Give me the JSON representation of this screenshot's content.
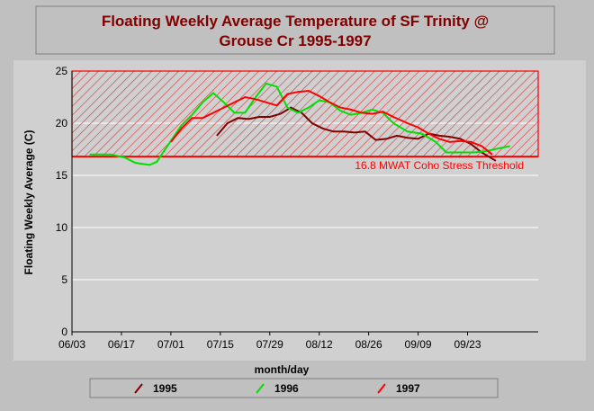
{
  "chart_data": {
    "type": "line",
    "title": "Floating Weekly Average Temperature of SF Trinity @",
    "subtitle": "Grouse Cr 1995-1997",
    "ylabel": "Floating Weekly Average (C)",
    "xlabel": "month/day",
    "xlim": [
      "06/03",
      "10/13"
    ],
    "xticks": [
      "06/03",
      "06/17",
      "07/01",
      "07/15",
      "07/29",
      "08/12",
      "08/26",
      "09/09",
      "09/23"
    ],
    "ylim": [
      0,
      25
    ],
    "yticks": [
      0,
      5,
      10,
      15,
      20,
      25
    ],
    "grid": true,
    "threshold": {
      "value": 16.8,
      "label": "16.8 MWAT Coho Stress Threshold",
      "color": "#ff0000"
    },
    "series": [
      {
        "name": "1995",
        "color": "#800000",
        "x": [
          "07/14",
          "07/17",
          "07/20",
          "07/23",
          "07/26",
          "07/29",
          "08/01",
          "08/04",
          "08/07",
          "08/10",
          "08/13",
          "08/16",
          "08/19",
          "08/22",
          "08/25",
          "08/28",
          "08/31",
          "09/03",
          "09/06",
          "09/09",
          "09/12",
          "09/15",
          "09/18",
          "09/21",
          "09/24",
          "09/27",
          "10/01"
        ],
        "values": [
          18.8,
          20.0,
          20.5,
          20.4,
          20.6,
          20.6,
          20.9,
          21.5,
          21.0,
          20.0,
          19.5,
          19.2,
          19.2,
          19.1,
          19.2,
          18.4,
          18.5,
          18.8,
          18.6,
          18.5,
          19.0,
          18.8,
          18.7,
          18.5,
          18.0,
          17.2,
          16.4
        ]
      },
      {
        "name": "1996",
        "color": "#00e000",
        "x": [
          "06/08",
          "06/14",
          "06/18",
          "06/21",
          "06/25",
          "06/27",
          "07/01",
          "07/04",
          "07/07",
          "07/10",
          "07/13",
          "07/16",
          "07/19",
          "07/22",
          "07/25",
          "07/28",
          "07/31",
          "08/03",
          "08/06",
          "08/09",
          "08/12",
          "08/15",
          "08/18",
          "08/21",
          "08/24",
          "08/27",
          "08/30",
          "09/02",
          "09/06",
          "09/10",
          "09/14",
          "09/17",
          "09/21",
          "09/25",
          "09/28",
          "10/02",
          "10/05"
        ],
        "values": [
          17.0,
          17.0,
          16.7,
          16.2,
          16.0,
          16.3,
          18.3,
          19.8,
          20.8,
          22.0,
          22.9,
          22.0,
          21.0,
          21.0,
          22.5,
          23.8,
          23.5,
          21.5,
          21.0,
          21.5,
          22.2,
          22.0,
          21.2,
          20.8,
          21.0,
          21.3,
          21.0,
          20.0,
          19.2,
          19.0,
          18.2,
          17.2,
          17.2,
          17.2,
          17.3,
          17.6,
          17.8
        ]
      },
      {
        "name": "1997",
        "color": "#ff0000",
        "x": [
          "07/01",
          "07/04",
          "07/07",
          "07/10",
          "07/13",
          "07/16",
          "07/19",
          "07/22",
          "07/25",
          "07/28",
          "07/31",
          "08/03",
          "08/06",
          "08/09",
          "08/12",
          "08/15",
          "08/18",
          "08/21",
          "08/24",
          "08/27",
          "08/30",
          "09/02",
          "09/06",
          "09/09",
          "09/12",
          "09/15",
          "09/18",
          "09/21",
          "09/24",
          "09/27",
          "09/30"
        ],
        "values": [
          18.2,
          19.5,
          20.5,
          20.5,
          21.0,
          21.5,
          22.0,
          22.5,
          22.3,
          22.0,
          21.7,
          22.8,
          23.0,
          23.1,
          22.6,
          22.0,
          21.5,
          21.3,
          21.0,
          20.9,
          21.1,
          20.6,
          20.0,
          19.6,
          19.0,
          18.5,
          18.2,
          18.3,
          18.2,
          17.8,
          17.0
        ]
      }
    ]
  }
}
